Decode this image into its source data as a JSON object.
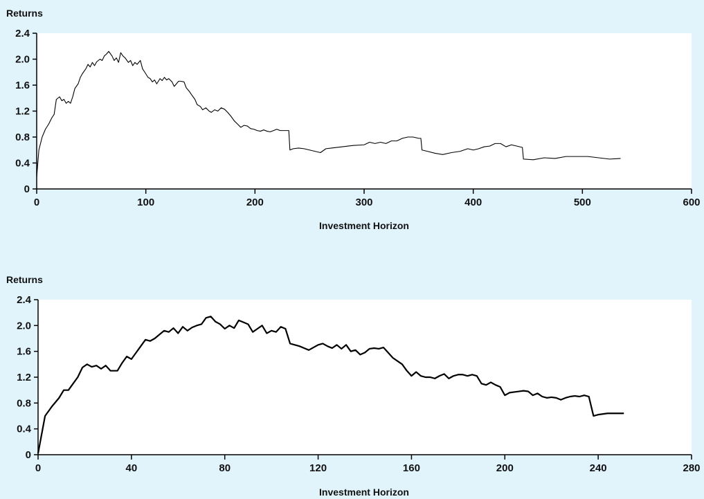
{
  "colors": {
    "page_background": "#e1f3fb",
    "plot_background": "#ffffff",
    "axis": "#000000",
    "series": "#000000"
  },
  "chart_data": [
    {
      "type": "line",
      "ylabel": "Returns",
      "xlabel": "Investment Horizon",
      "xlim": [
        0,
        600
      ],
      "ylim": [
        0,
        2.4
      ],
      "xticks": [
        0,
        100,
        200,
        300,
        400,
        500,
        600
      ],
      "yticks": [
        0,
        0.4,
        0.8,
        1.2,
        1.6,
        2.0,
        2.4
      ],
      "ytick_labels": [
        "0",
        "0.4",
        "0.8",
        "1.2",
        "1.6",
        "2.0",
        "2.4"
      ],
      "grid": false,
      "series": [
        {
          "x": [
            0,
            2,
            5,
            8,
            11,
            14,
            16,
            18,
            21,
            23,
            25,
            27,
            29,
            31,
            33,
            35,
            38,
            40,
            42,
            45,
            47,
            49,
            51,
            53,
            55,
            58,
            60,
            62,
            64,
            66,
            69,
            71,
            73,
            75,
            77,
            79,
            81,
            84,
            86,
            88,
            90,
            92,
            95,
            97,
            99,
            102,
            104,
            106,
            108,
            110,
            113,
            115,
            117,
            119,
            121,
            124,
            126,
            128,
            130,
            132,
            135,
            137,
            140,
            142,
            145,
            147,
            150,
            152,
            155,
            158,
            160,
            163,
            166,
            169,
            172,
            175,
            178,
            181,
            184,
            187,
            190,
            193,
            196,
            199,
            202,
            205,
            208,
            211,
            214,
            217,
            220,
            223,
            226,
            229,
            231,
            232,
            235,
            240,
            245,
            250,
            255,
            260,
            265,
            270,
            280,
            290,
            300,
            305,
            310,
            315,
            320,
            325,
            330,
            335,
            340,
            345,
            350,
            352,
            353,
            358,
            365,
            372,
            380,
            388,
            395,
            400,
            405,
            410,
            415,
            420,
            425,
            430,
            435,
            440,
            445,
            446,
            455,
            465,
            475,
            485,
            495,
            505,
            515,
            525,
            535
          ],
          "y": [
            0.18,
            0.6,
            0.8,
            0.92,
            1.0,
            1.1,
            1.15,
            1.38,
            1.42,
            1.36,
            1.38,
            1.32,
            1.35,
            1.32,
            1.42,
            1.55,
            1.62,
            1.72,
            1.78,
            1.85,
            1.92,
            1.88,
            1.95,
            1.9,
            1.96,
            2.0,
            1.98,
            2.05,
            2.08,
            2.12,
            2.05,
            1.98,
            2.02,
            1.95,
            2.1,
            2.05,
            2.02,
            1.95,
            1.98,
            1.9,
            1.95,
            1.92,
            1.98,
            1.85,
            1.8,
            1.72,
            1.7,
            1.65,
            1.68,
            1.62,
            1.7,
            1.67,
            1.72,
            1.68,
            1.7,
            1.65,
            1.58,
            1.62,
            1.66,
            1.66,
            1.65,
            1.56,
            1.5,
            1.45,
            1.38,
            1.3,
            1.27,
            1.22,
            1.25,
            1.2,
            1.18,
            1.22,
            1.2,
            1.25,
            1.23,
            1.18,
            1.12,
            1.05,
            1.0,
            0.95,
            0.98,
            0.97,
            0.93,
            0.92,
            0.9,
            0.89,
            0.91,
            0.89,
            0.88,
            0.9,
            0.92,
            0.9,
            0.9,
            0.9,
            0.9,
            0.6,
            0.62,
            0.63,
            0.62,
            0.6,
            0.58,
            0.56,
            0.62,
            0.63,
            0.65,
            0.67,
            0.68,
            0.72,
            0.7,
            0.72,
            0.7,
            0.74,
            0.74,
            0.78,
            0.8,
            0.8,
            0.78,
            0.78,
            0.6,
            0.58,
            0.55,
            0.53,
            0.56,
            0.58,
            0.62,
            0.6,
            0.62,
            0.65,
            0.66,
            0.7,
            0.7,
            0.65,
            0.68,
            0.66,
            0.64,
            0.46,
            0.45,
            0.48,
            0.47,
            0.5,
            0.5,
            0.5,
            0.48,
            0.46,
            0.47
          ]
        }
      ]
    },
    {
      "type": "line",
      "ylabel": "Returns",
      "xlabel": "Investment Horizon",
      "xlim": [
        0,
        280
      ],
      "ylim": [
        0,
        2.4
      ],
      "xticks": [
        0,
        40,
        80,
        120,
        160,
        200,
        240,
        280
      ],
      "yticks": [
        0,
        0.4,
        0.8,
        1.2,
        1.6,
        2.0,
        2.4
      ],
      "ytick_labels": [
        "0",
        "0.4",
        "0.8",
        "1.2",
        "1.6",
        "2.0",
        "2.4"
      ],
      "grid": false,
      "series": [
        {
          "x": [
            0,
            3,
            6,
            9,
            11,
            13,
            15,
            17,
            19,
            21,
            23,
            25,
            27,
            29,
            31,
            34,
            36,
            38,
            40,
            42,
            44,
            46,
            48,
            50,
            52,
            54,
            56,
            58,
            60,
            62,
            64,
            66,
            68,
            70,
            72,
            74,
            76,
            78,
            80,
            82,
            84,
            86,
            88,
            90,
            92,
            94,
            96,
            98,
            100,
            102,
            104,
            106,
            108,
            110,
            112,
            114,
            116,
            118,
            120,
            122,
            124,
            126,
            128,
            130,
            132,
            134,
            136,
            138,
            140,
            142,
            144,
            146,
            148,
            150,
            152,
            154,
            156,
            158,
            160,
            162,
            164,
            166,
            168,
            170,
            172,
            174,
            176,
            178,
            180,
            182,
            184,
            186,
            188,
            190,
            192,
            194,
            196,
            198,
            200,
            202,
            204,
            206,
            208,
            210,
            212,
            214,
            216,
            218,
            220,
            222,
            224,
            226,
            228,
            230,
            232,
            234,
            236,
            238,
            240,
            244,
            248,
            251
          ],
          "y": [
            0.02,
            0.6,
            0.75,
            0.88,
            1.0,
            1.0,
            1.1,
            1.2,
            1.35,
            1.4,
            1.36,
            1.38,
            1.33,
            1.38,
            1.3,
            1.3,
            1.42,
            1.52,
            1.48,
            1.58,
            1.68,
            1.78,
            1.76,
            1.8,
            1.86,
            1.92,
            1.9,
            1.96,
            1.88,
            1.98,
            1.92,
            1.97,
            2.0,
            2.02,
            2.12,
            2.14,
            2.06,
            2.02,
            1.95,
            2.0,
            1.96,
            2.08,
            2.05,
            2.02,
            1.9,
            1.95,
            2.0,
            1.88,
            1.92,
            1.9,
            1.98,
            1.95,
            1.72,
            1.7,
            1.68,
            1.65,
            1.62,
            1.66,
            1.7,
            1.72,
            1.68,
            1.65,
            1.7,
            1.64,
            1.7,
            1.6,
            1.62,
            1.55,
            1.58,
            1.64,
            1.65,
            1.64,
            1.66,
            1.58,
            1.5,
            1.45,
            1.4,
            1.3,
            1.22,
            1.28,
            1.22,
            1.2,
            1.2,
            1.18,
            1.22,
            1.25,
            1.18,
            1.22,
            1.24,
            1.24,
            1.22,
            1.24,
            1.22,
            1.1,
            1.08,
            1.12,
            1.08,
            1.05,
            0.92,
            0.96,
            0.97,
            0.98,
            0.99,
            0.98,
            0.92,
            0.95,
            0.9,
            0.88,
            0.89,
            0.88,
            0.85,
            0.88,
            0.9,
            0.91,
            0.9,
            0.92,
            0.9,
            0.6,
            0.62,
            0.64,
            0.64,
            0.64
          ]
        }
      ]
    }
  ]
}
